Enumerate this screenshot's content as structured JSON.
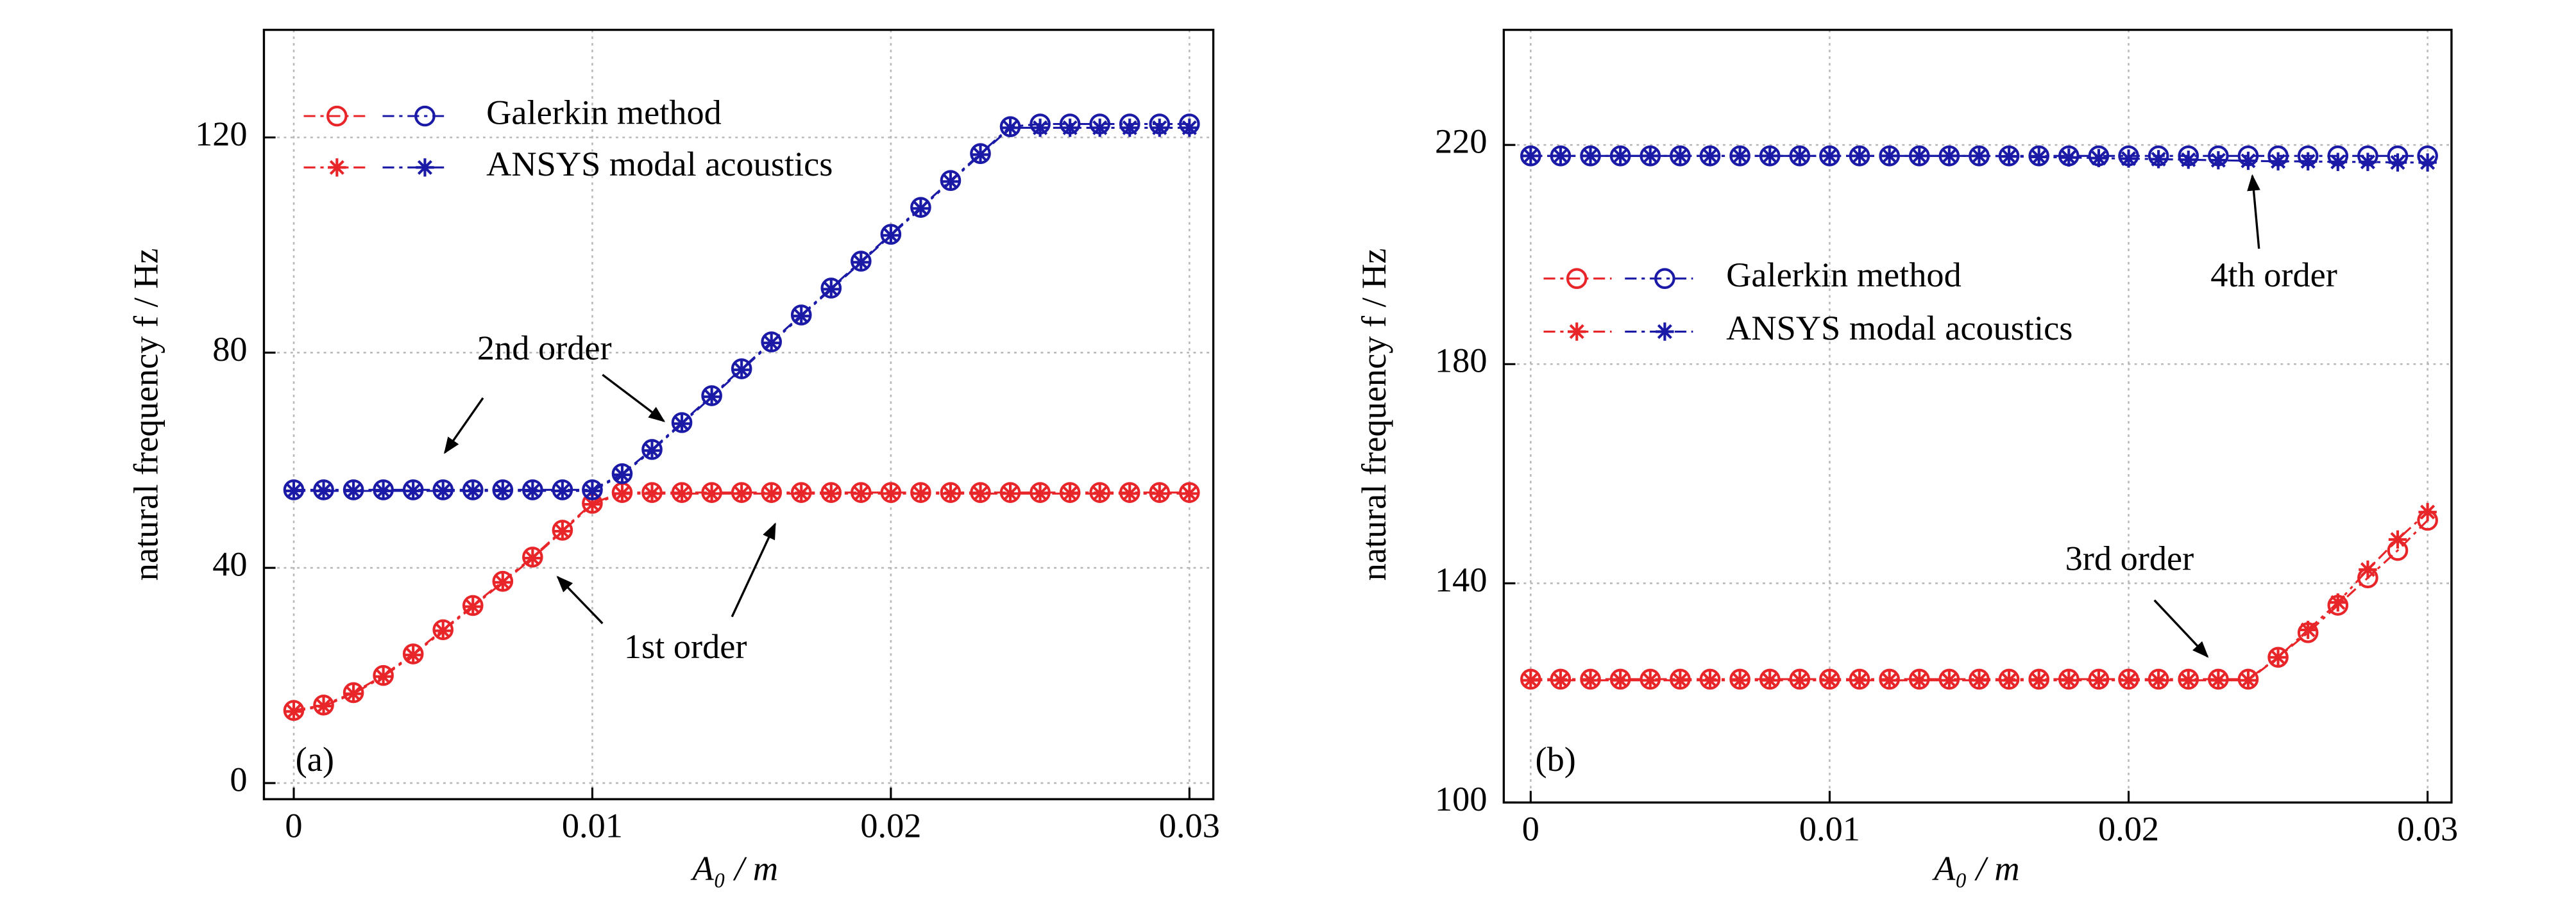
{
  "chart_data": [
    {
      "type": "line",
      "label": "(a)",
      "xlabel": "A₀ / m",
      "ylabel": "natural frequency f / Hz",
      "x": [
        0,
        0.001,
        0.002,
        0.003,
        0.004,
        0.005,
        0.006,
        0.007,
        0.008,
        0.009,
        0.01,
        0.011,
        0.012,
        0.013,
        0.014,
        0.015,
        0.016,
        0.017,
        0.018,
        0.019,
        0.02,
        0.021,
        0.022,
        0.023,
        0.024,
        0.025,
        0.026,
        0.027,
        0.028,
        0.029,
        0.03
      ],
      "xlim": [
        -0.001,
        0.0308
      ],
      "xticks": [
        0,
        0.01,
        0.02,
        0.03
      ],
      "ylim": [
        -3,
        140
      ],
      "yticks": [
        0,
        40,
        80,
        120
      ],
      "grid": true,
      "series": [
        {
          "name": "Galerkin method",
          "color": "#e8262a",
          "marker": "circle",
          "values": [
            13.5,
            14.5,
            16.8,
            20,
            24,
            28.5,
            33,
            37.5,
            42,
            47,
            52,
            54,
            54,
            54,
            54,
            54,
            54,
            54,
            54,
            54,
            54,
            54,
            54,
            54,
            54,
            54,
            54,
            54,
            54,
            54,
            54
          ]
        },
        {
          "name": "ANSYS modal acoustics",
          "color": "#e8262a",
          "marker": "star",
          "values": [
            13.3,
            14.3,
            16.6,
            19.8,
            23.8,
            28.3,
            32.8,
            37.3,
            41.8,
            46.8,
            51.8,
            53.8,
            53.8,
            53.8,
            53.8,
            53.8,
            53.8,
            53.8,
            53.8,
            53.8,
            53.8,
            53.8,
            53.8,
            53.8,
            53.8,
            53.8,
            53.8,
            53.8,
            53.8,
            53.8,
            53.8
          ]
        },
        {
          "name": "Galerkin method",
          "color": "#1a1aa6",
          "marker": "circle",
          "values": [
            54.5,
            54.5,
            54.5,
            54.5,
            54.5,
            54.5,
            54.5,
            54.5,
            54.5,
            54.5,
            54.5,
            57.5,
            62,
            67,
            72,
            77,
            82,
            87,
            92,
            97,
            102,
            107,
            112,
            117,
            122,
            122.5,
            122.5,
            122.5,
            122.5,
            122.5,
            122.5
          ]
        },
        {
          "name": "ANSYS modal acoustics",
          "color": "#1a1aa6",
          "marker": "star",
          "values": [
            54.3,
            54.3,
            54.3,
            54.3,
            54.3,
            54.3,
            54.3,
            54.3,
            54.3,
            54.3,
            54.3,
            57.3,
            61.8,
            66.8,
            71.8,
            76.8,
            81.8,
            86.8,
            91.8,
            96.8,
            101.8,
            106.8,
            111.8,
            116.8,
            121.8,
            121.8,
            121.8,
            121.8,
            121.8,
            121.8,
            121.8
          ]
        }
      ],
      "annotations": [
        "2nd order",
        "1st order"
      ]
    },
    {
      "type": "line",
      "label": "(b)",
      "xlabel": "A₀ / m",
      "ylabel": "natural frequency f / Hz",
      "x": [
        0,
        0.001,
        0.002,
        0.003,
        0.004,
        0.005,
        0.006,
        0.007,
        0.008,
        0.009,
        0.01,
        0.011,
        0.012,
        0.013,
        0.014,
        0.015,
        0.016,
        0.017,
        0.018,
        0.019,
        0.02,
        0.021,
        0.022,
        0.023,
        0.024,
        0.025,
        0.026,
        0.027,
        0.028,
        0.029,
        0.03
      ],
      "xlim": [
        -0.0009,
        0.0308
      ],
      "xticks": [
        0,
        0.01,
        0.02,
        0.03
      ],
      "ylim": [
        100,
        241
      ],
      "yticks": [
        100,
        140,
        180,
        220
      ],
      "grid": true,
      "series": [
        {
          "name": "Galerkin method",
          "color": "#e8262a",
          "marker": "circle",
          "values": [
            122.5,
            122.5,
            122.5,
            122.5,
            122.5,
            122.5,
            122.5,
            122.5,
            122.5,
            122.5,
            122.5,
            122.5,
            122.5,
            122.5,
            122.5,
            122.5,
            122.5,
            122.5,
            122.5,
            122.5,
            122.5,
            122.5,
            122.5,
            122.5,
            122.5,
            126.5,
            131,
            136,
            141,
            146,
            151.5
          ]
        },
        {
          "name": "ANSYS modal acoustics",
          "color": "#e8262a",
          "marker": "star",
          "values": [
            122.3,
            122.3,
            122.3,
            122.3,
            122.3,
            122.3,
            122.3,
            122.3,
            122.3,
            122.3,
            122.3,
            122.3,
            122.3,
            122.3,
            122.3,
            122.3,
            122.3,
            122.3,
            122.3,
            122.3,
            122.3,
            122.3,
            122.3,
            122.3,
            122.3,
            126.5,
            131.5,
            136.5,
            142.5,
            148,
            153
          ]
        },
        {
          "name": "Galerkin method",
          "color": "#1a1aa6",
          "marker": "circle",
          "values": [
            218,
            218,
            218,
            218,
            218,
            218,
            218,
            218,
            218,
            218,
            218,
            218,
            218,
            218,
            218,
            218,
            218,
            218,
            218,
            218,
            218,
            218,
            218,
            218,
            218,
            218,
            218,
            218,
            218,
            218,
            218
          ]
        },
        {
          "name": "ANSYS modal acoustics",
          "color": "#1a1aa6",
          "marker": "star",
          "values": [
            218,
            218,
            218,
            218,
            218,
            218,
            218,
            218,
            218,
            218,
            218,
            218,
            218,
            218,
            218,
            218,
            217.9,
            217.8,
            217.7,
            217.6,
            217.5,
            217.4,
            217.3,
            217.2,
            217.1,
            217,
            217,
            216.9,
            216.9,
            216.8,
            216.8
          ]
        }
      ],
      "annotations": [
        "4th order",
        "3rd order"
      ]
    }
  ]
}
